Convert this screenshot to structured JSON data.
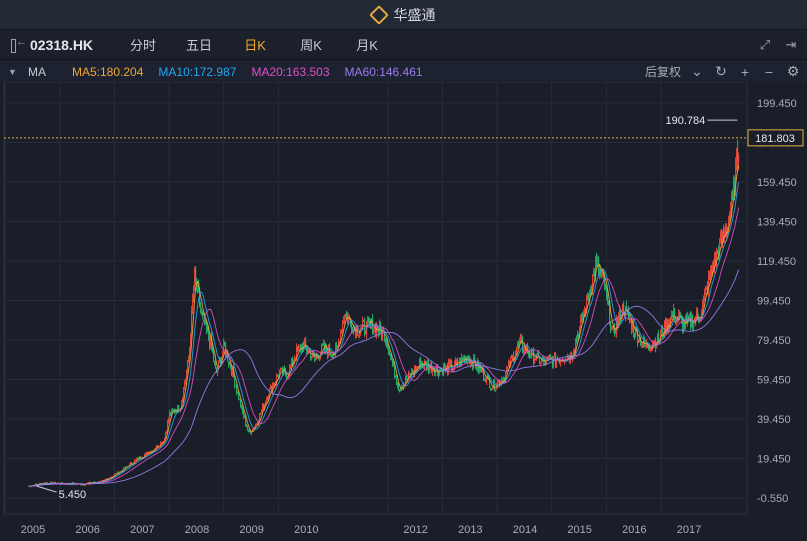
{
  "app": {
    "title": "华盛通"
  },
  "toolbar": {
    "symbol": "02318.HK",
    "tabs": [
      {
        "label": "分时",
        "active": false
      },
      {
        "label": "五日",
        "active": false
      },
      {
        "label": "日K",
        "active": true
      },
      {
        "label": "周K",
        "active": false
      },
      {
        "label": "月K",
        "active": false
      }
    ]
  },
  "ma_bar": {
    "label": "MA",
    "items": [
      {
        "text": "MA5:180.204",
        "color": "#f0a732"
      },
      {
        "text": "MA10:172.987",
        "color": "#22a6f2"
      },
      {
        "text": "MA20:163.503",
        "color": "#e04fc6"
      },
      {
        "text": "MA60:146.461",
        "color": "#9b7cf0"
      }
    ],
    "adjust": "后复权"
  },
  "chart_data": {
    "type": "candlestick",
    "x_labels": [
      "2005",
      "2006",
      "2007",
      "2008",
      "2009",
      "2010",
      "2012",
      "2013",
      "2014",
      "2015",
      "2016",
      "2017"
    ],
    "y_ticks": [
      "199.450",
      "179.450",
      "159.450",
      "139.450",
      "119.450",
      "99.450",
      "79.450",
      "59.450",
      "39.450",
      "19.450",
      "-0.550"
    ],
    "ylim": [
      -0.55,
      199.45
    ],
    "max_label": "190.784",
    "min_label": "5.450",
    "last_price": "181.803",
    "colors": {
      "up": "#e8463a",
      "down": "#26b36d",
      "ma5": "#f0a732",
      "ma10": "#22a6f2",
      "ma20": "#e04fc6",
      "ma60": "#9b7cf0",
      "last_line": "#e3b341"
    },
    "trend": [
      [
        2004.92,
        5.5
      ],
      [
        2005.2,
        7.0
      ],
      [
        2005.5,
        6.8
      ],
      [
        2005.9,
        6.5
      ],
      [
        2006.3,
        8.0
      ],
      [
        2006.6,
        13.0
      ],
      [
        2006.9,
        19.0
      ],
      [
        2007.2,
        24.0
      ],
      [
        2007.4,
        29.0
      ],
      [
        2007.5,
        42.0
      ],
      [
        2007.7,
        46.0
      ],
      [
        2007.85,
        70.0
      ],
      [
        2007.95,
        112.0
      ],
      [
        2008.1,
        90.0
      ],
      [
        2008.25,
        78.0
      ],
      [
        2008.35,
        62.0
      ],
      [
        2008.5,
        76.0
      ],
      [
        2008.65,
        63.0
      ],
      [
        2008.8,
        46.0
      ],
      [
        2008.95,
        32.0
      ],
      [
        2009.1,
        38.0
      ],
      [
        2009.3,
        52.0
      ],
      [
        2009.5,
        63.0
      ],
      [
        2009.65,
        62.0
      ],
      [
        2009.8,
        72.0
      ],
      [
        2009.95,
        77.0
      ],
      [
        2010.15,
        70.0
      ],
      [
        2010.3,
        75.0
      ],
      [
        2010.55,
        73.0
      ],
      [
        2010.7,
        93.0
      ],
      [
        2010.9,
        85.0
      ],
      [
        2011.2,
        87.0
      ],
      [
        2011.45,
        82.0
      ],
      [
        2011.55,
        70.0
      ],
      [
        2011.7,
        55.0
      ],
      [
        2011.85,
        60.0
      ],
      [
        2012.1,
        68.0
      ],
      [
        2012.4,
        64.0
      ],
      [
        2012.7,
        66.0
      ],
      [
        2012.95,
        71.0
      ],
      [
        2013.2,
        64.0
      ],
      [
        2013.4,
        56.0
      ],
      [
        2013.6,
        60.0
      ],
      [
        2013.9,
        78.0
      ],
      [
        2014.1,
        72.0
      ],
      [
        2014.35,
        68.0
      ],
      [
        2014.6,
        70.0
      ],
      [
        2014.85,
        72.0
      ],
      [
        2015.1,
        95.0
      ],
      [
        2015.3,
        118.0
      ],
      [
        2015.45,
        108.0
      ],
      [
        2015.6,
        82.0
      ],
      [
        2015.8,
        96.0
      ],
      [
        2016.05,
        82.0
      ],
      [
        2016.2,
        76.0
      ],
      [
        2016.45,
        80.0
      ],
      [
        2016.7,
        92.0
      ],
      [
        2016.95,
        87.0
      ],
      [
        2017.2,
        92.0
      ],
      [
        2017.45,
        118.0
      ],
      [
        2017.65,
        133.0
      ],
      [
        2017.8,
        150.0
      ],
      [
        2017.92,
        181.8
      ]
    ]
  }
}
